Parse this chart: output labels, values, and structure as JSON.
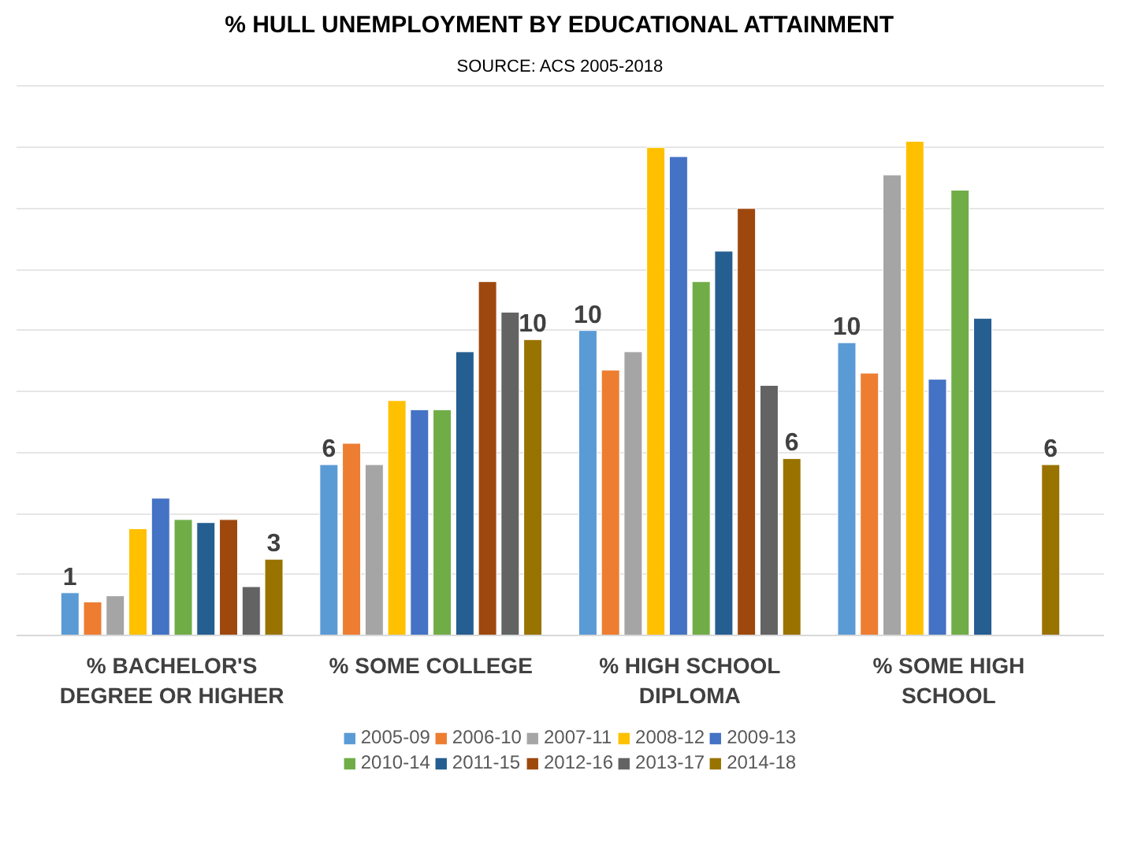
{
  "chart_data": {
    "type": "bar",
    "title": "% HULL UNEMPLOYMENT BY EDUCATIONAL ATTAINMENT",
    "subtitle": "SOURCE: ACS 2005-2018",
    "categories": [
      "% BACHELOR'S DEGREE OR HIGHER",
      "% SOME COLLEGE",
      "% HIGH SCHOOL DIPLOMA",
      "% SOME HIGH SCHOOL"
    ],
    "series": [
      {
        "name": "2005-09",
        "color": "#5b9bd5",
        "values": [
          1.4,
          5.6,
          10.0,
          9.6
        ],
        "value_labels": [
          "1",
          "6",
          "10",
          "10"
        ]
      },
      {
        "name": "2006-10",
        "color": "#ed7d31",
        "values": [
          1.1,
          6.3,
          8.7,
          8.6
        ]
      },
      {
        "name": "2007-11",
        "color": "#a5a5a5",
        "values": [
          1.3,
          5.6,
          9.3,
          15.1
        ]
      },
      {
        "name": "2008-12",
        "color": "#ffc000",
        "values": [
          3.5,
          7.7,
          16.0,
          16.2
        ]
      },
      {
        "name": "2009-13",
        "color": "#4472c4",
        "values": [
          4.5,
          7.4,
          15.7,
          8.4
        ]
      },
      {
        "name": "2010-14",
        "color": "#70ad47",
        "values": [
          3.8,
          7.4,
          11.6,
          14.6
        ]
      },
      {
        "name": "2011-15",
        "color": "#255e91",
        "values": [
          3.7,
          9.3,
          12.6,
          10.4
        ]
      },
      {
        "name": "2012-16",
        "color": "#9e480e",
        "values": [
          3.8,
          11.6,
          14.0,
          null
        ]
      },
      {
        "name": "2013-17",
        "color": "#636363",
        "values": [
          1.6,
          10.6,
          8.2,
          null
        ]
      },
      {
        "name": "2014-18",
        "color": "#997300",
        "values": [
          2.5,
          9.7,
          5.8,
          5.6
        ],
        "value_labels": [
          "3",
          "10",
          "6",
          "6"
        ]
      }
    ],
    "ylim": [
      0,
      18
    ],
    "yticks": [
      {
        "value": 0,
        "label": null
      },
      {
        "value": 2,
        "label": null
      },
      {
        "value": 4,
        "label": null
      },
      {
        "value": 6,
        "label": null
      },
      {
        "value": 8,
        "label": null
      },
      {
        "value": 10,
        "label": null
      },
      {
        "value": 12,
        "label": null
      },
      {
        "value": 14,
        "label": null
      },
      {
        "value": 16,
        "label": null
      },
      {
        "value": 18,
        "label": null
      }
    ],
    "grid": "y",
    "legend": "bottom",
    "tick_labels": "x"
  }
}
